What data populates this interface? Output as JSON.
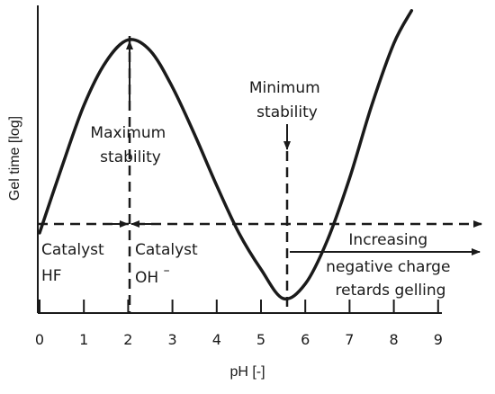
{
  "chart_data": {
    "type": "line",
    "xlabel": "pH [-]",
    "ylabel": "Gel time [log]",
    "x_ticks": [
      "0",
      "1",
      "2",
      "3",
      "4",
      "5",
      "6",
      "7",
      "8",
      "9"
    ],
    "xlim": [
      0,
      9
    ],
    "grid": false,
    "series": [
      {
        "x": [
          0,
          0.5,
          1,
          1.5,
          2,
          2.5,
          3,
          3.5,
          4,
          4.5,
          5,
          5.5,
          6,
          6.5,
          7,
          7.5,
          8,
          8.4
        ],
        "y": [
          2.2,
          4.0,
          5.7,
          6.9,
          7.5,
          7.2,
          6.2,
          4.9,
          3.5,
          2.2,
          1.2,
          0.4,
          0.8,
          2.0,
          3.7,
          5.7,
          7.4,
          8.3
        ]
      }
    ],
    "reference_levels": {
      "horizontal_y": 2.0,
      "max_x": 2.0,
      "min_x": 5.5
    },
    "annotations": {
      "maximum": [
        "Maximum",
        "stability"
      ],
      "minimum": [
        "Minimum",
        "stability"
      ],
      "catalyst_hf": [
        "Catalyst",
        "HF"
      ],
      "catalyst_oh": [
        "Catalyst",
        "OH",
        "–"
      ],
      "increasing": [
        "Increasing",
        "negative charge",
        "retards gelling"
      ]
    }
  }
}
